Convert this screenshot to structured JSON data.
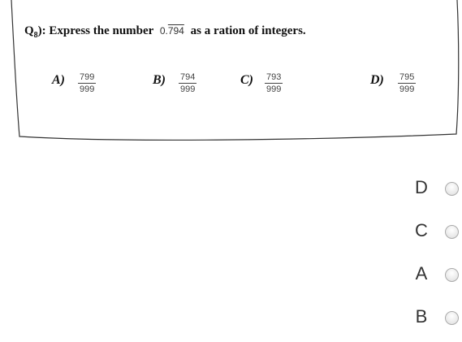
{
  "question": {
    "label": "Q",
    "number": "8",
    "suffix": "):",
    "text": "Express the number",
    "decimal_whole": "0.",
    "decimal_repeating": "794",
    "text_end": "as a ration of integers."
  },
  "options": [
    {
      "letter": "A)",
      "numerator": "799",
      "denominator": "999"
    },
    {
      "letter": "B)",
      "numerator": "794",
      "denominator": "999"
    },
    {
      "letter": "C)",
      "numerator": "793",
      "denominator": "999"
    },
    {
      "letter": "D)",
      "numerator": "795",
      "denominator": "999"
    }
  ],
  "answers": [
    "D",
    "C",
    "A",
    "B"
  ]
}
